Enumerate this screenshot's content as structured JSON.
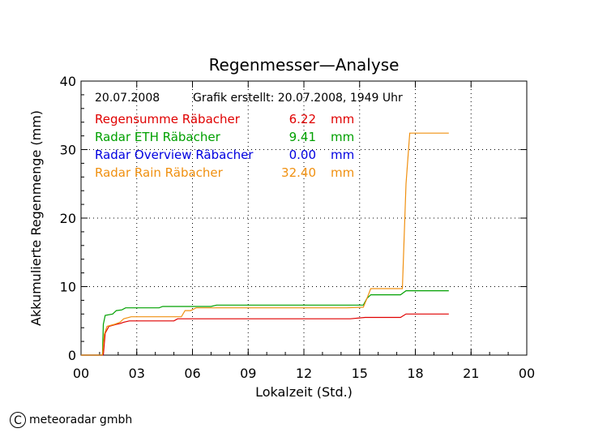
{
  "chart_data": {
    "type": "line",
    "title": "Regenmesser—Analyse",
    "xlabel": "Lokalzeit (Std.)",
    "ylabel": "Akkumulierte Regenmenge (mm)",
    "xlim": [
      0,
      24
    ],
    "ylim": [
      0,
      40
    ],
    "xticks": [
      "00",
      "03",
      "06",
      "09",
      "12",
      "15",
      "18",
      "21",
      "00"
    ],
    "yticks": [
      "0",
      "10",
      "20",
      "30",
      "40"
    ],
    "grid": true,
    "date": "20.07.2008",
    "created": "Grafik erstellt: 20.07.2008, 1949 Uhr",
    "legend_placement": "top-left",
    "series": [
      {
        "name": "Regensumme Räbacher",
        "total": "6.22",
        "unit": "mm",
        "color": "#e00000",
        "points": [
          [
            0,
            0
          ],
          [
            1.2,
            0
          ],
          [
            1.3,
            3.2
          ],
          [
            1.5,
            4.2
          ],
          [
            1.9,
            4.5
          ],
          [
            2.1,
            4.6
          ],
          [
            2.3,
            4.8
          ],
          [
            2.6,
            5.0
          ],
          [
            5.0,
            5.0
          ],
          [
            5.2,
            5.3
          ],
          [
            14.5,
            5.3
          ],
          [
            15.3,
            5.5
          ],
          [
            17.2,
            5.5
          ],
          [
            17.5,
            6.0
          ],
          [
            19.8,
            6.0
          ]
        ]
      },
      {
        "name": "Radar ETH Räbacher",
        "total": "9.41",
        "unit": "mm",
        "color": "#00a000",
        "points": [
          [
            0,
            0
          ],
          [
            1.15,
            0
          ],
          [
            1.2,
            4.5
          ],
          [
            1.3,
            5.8
          ],
          [
            1.7,
            6.0
          ],
          [
            1.9,
            6.5
          ],
          [
            2.2,
            6.6
          ],
          [
            2.4,
            6.9
          ],
          [
            4.2,
            6.9
          ],
          [
            4.4,
            7.1
          ],
          [
            7.0,
            7.1
          ],
          [
            7.3,
            7.3
          ],
          [
            15.2,
            7.3
          ],
          [
            15.4,
            8.3
          ],
          [
            15.6,
            8.8
          ],
          [
            17.2,
            8.8
          ],
          [
            17.5,
            9.4
          ],
          [
            19.8,
            9.4
          ]
        ]
      },
      {
        "name": "Radar Overview Räbacher",
        "total": "0.00",
        "unit": "mm",
        "color": "#0000e0",
        "points": [
          [
            0,
            0
          ],
          [
            1.2,
            0
          ]
        ]
      },
      {
        "name": "Radar Rain Räbacher",
        "total": "32.40",
        "unit": "mm",
        "color": "#f09010",
        "points": [
          [
            0,
            0
          ],
          [
            1.15,
            0
          ],
          [
            1.25,
            3.0
          ],
          [
            1.4,
            4.2
          ],
          [
            1.8,
            4.5
          ],
          [
            2.1,
            4.8
          ],
          [
            2.3,
            5.3
          ],
          [
            2.7,
            5.6
          ],
          [
            5.4,
            5.6
          ],
          [
            5.6,
            6.5
          ],
          [
            5.9,
            6.5
          ],
          [
            6.2,
            6.9
          ],
          [
            14.3,
            6.9
          ],
          [
            15.2,
            7.0
          ],
          [
            15.4,
            8.3
          ],
          [
            15.6,
            9.7
          ],
          [
            17.3,
            9.7
          ],
          [
            17.5,
            25.0
          ],
          [
            17.7,
            32.4
          ],
          [
            19.8,
            32.4
          ]
        ]
      }
    ]
  },
  "credit": {
    "symbol": "C",
    "text": "meteoradar gmbh"
  }
}
